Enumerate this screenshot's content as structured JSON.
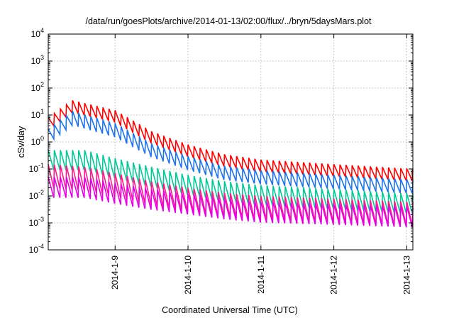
{
  "chart_data": {
    "type": "line",
    "title": "/data/run/goesPlots/archive/2014-01-13/02:00/flux/../bryn/5daysMars.plot",
    "xlabel": "Coordinated Universal Time (UTC)",
    "ylabel": "cSv/day",
    "yscale": "log",
    "ylim": [
      0.0001,
      10000
    ],
    "xlim": [
      "2014-01-08 02:00",
      "2014-01-13 02:00"
    ],
    "grid": true,
    "y_ticks": [
      {
        "base": "10",
        "exp": "-4"
      },
      {
        "base": "10",
        "exp": "-3"
      },
      {
        "base": "10",
        "exp": "-2"
      },
      {
        "base": "10",
        "exp": "-1"
      },
      {
        "base": "10",
        "exp": "0"
      },
      {
        "base": "10",
        "exp": "1"
      },
      {
        "base": "10",
        "exp": "2"
      },
      {
        "base": "10",
        "exp": "3"
      },
      {
        "base": "10",
        "exp": "4"
      }
    ],
    "x_ticks": [
      "2014-1-9",
      "2014-1-10",
      "2014-1-11",
      "2014-1-12",
      "2014-1-13"
    ],
    "sawtooth_period_hours": 2,
    "series": [
      {
        "color": "#ff0000",
        "peaks": [
          [
            "2014-01-08 02:00",
            8
          ],
          [
            "2014-01-08 10:00",
            35
          ],
          [
            "2014-01-09 00:00",
            15
          ],
          [
            "2014-01-09 12:00",
            2.5
          ],
          [
            "2014-01-10 00:00",
            0.8
          ],
          [
            "2014-01-10 12:00",
            0.35
          ],
          [
            "2014-01-11 00:00",
            0.22
          ],
          [
            "2014-01-12 00:00",
            0.15
          ],
          [
            "2014-01-13 02:00",
            0.1
          ]
        ],
        "trough_ratio": 0.35
      },
      {
        "color": "#1e73e8",
        "peaks": [
          [
            "2014-01-08 02:00",
            3
          ],
          [
            "2014-01-08 10:00",
            14
          ],
          [
            "2014-01-09 00:00",
            5
          ],
          [
            "2014-01-09 12:00",
            0.9
          ],
          [
            "2014-01-10 00:00",
            0.3
          ],
          [
            "2014-01-10 12:00",
            0.13
          ],
          [
            "2014-01-11 00:00",
            0.09
          ],
          [
            "2014-01-12 00:00",
            0.06
          ],
          [
            "2014-01-13 02:00",
            0.04
          ]
        ],
        "trough_ratio": 0.3
      },
      {
        "color": "#00c896",
        "peaks": [
          [
            "2014-01-08 02:00",
            0.5
          ],
          [
            "2014-01-08 14:00",
            0.5
          ],
          [
            "2014-01-09 00:00",
            0.25
          ],
          [
            "2014-01-09 12:00",
            0.12
          ],
          [
            "2014-01-10 00:00",
            0.06
          ],
          [
            "2014-01-10 12:00",
            0.035
          ],
          [
            "2014-01-11 00:00",
            0.025
          ],
          [
            "2014-01-12 00:00",
            0.018
          ],
          [
            "2014-01-13 02:00",
            0.012
          ]
        ],
        "trough_ratio": 0.18
      },
      {
        "color": "#ff1a8c",
        "peaks": [
          [
            "2014-01-08 02:00",
            0.15
          ],
          [
            "2014-01-08 14:00",
            0.12
          ],
          [
            "2014-01-09 00:00",
            0.07
          ],
          [
            "2014-01-09 12:00",
            0.035
          ],
          [
            "2014-01-10 00:00",
            0.02
          ],
          [
            "2014-01-10 12:00",
            0.013
          ],
          [
            "2014-01-11 00:00",
            0.01
          ],
          [
            "2014-01-12 00:00",
            0.008
          ],
          [
            "2014-01-13 02:00",
            0.006
          ]
        ],
        "trough_ratio": 0.13
      },
      {
        "color": "#e600e6",
        "peaks": [
          [
            "2014-01-08 02:00",
            0.05
          ],
          [
            "2014-01-08 14:00",
            0.05
          ],
          [
            "2014-01-09 00:00",
            0.03
          ],
          [
            "2014-01-09 12:00",
            0.018
          ],
          [
            "2014-01-10 00:00",
            0.012
          ],
          [
            "2014-01-10 12:00",
            0.008
          ],
          [
            "2014-01-11 00:00",
            0.006
          ],
          [
            "2014-01-12 00:00",
            0.005
          ],
          [
            "2014-01-13 02:00",
            0.004
          ]
        ],
        "trough_ratio": 0.17
      }
    ]
  }
}
